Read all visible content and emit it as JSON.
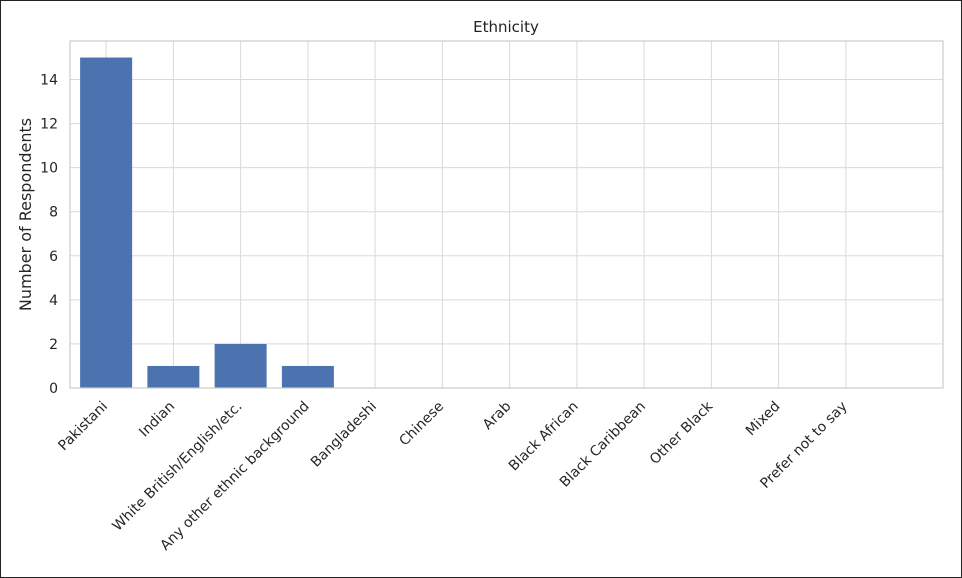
{
  "chart_data": {
    "type": "bar",
    "title": "Ethnicity",
    "xlabel": "",
    "ylabel": "Number of Respondents",
    "categories": [
      "Pakistani",
      "Indian",
      "White British/English/etc.",
      "Any other ethnic background",
      "Bangladeshi",
      "Chinese",
      "Arab",
      "Black African",
      "Black Caribbean",
      "Other Black",
      "Mixed",
      "Prefer not to say"
    ],
    "values": [
      15,
      1,
      2,
      1,
      0,
      0,
      0,
      0,
      0,
      0,
      0,
      0
    ],
    "ylim": [
      0,
      15.75
    ],
    "yticks": [
      0,
      2,
      4,
      6,
      8,
      10,
      12,
      14
    ],
    "grid": true,
    "legend": "none",
    "colors": {
      "bar": "#4c72b0",
      "grid": "#d9d9d9",
      "border": "#cccccc",
      "text": "#262626"
    }
  }
}
